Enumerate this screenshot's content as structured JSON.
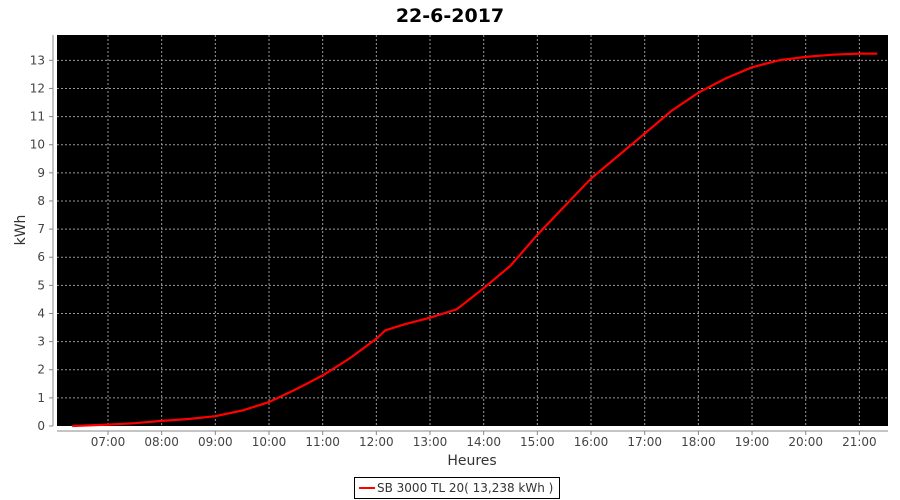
{
  "chart_data": {
    "type": "line",
    "title": "22-6-2017",
    "xlabel": "Heures",
    "ylabel": "kWh",
    "xlim": [
      "06:03",
      "21:32"
    ],
    "ylim": [
      0,
      13.9
    ],
    "x_ticks": [
      "07:00",
      "08:00",
      "09:00",
      "10:00",
      "11:00",
      "12:00",
      "13:00",
      "14:00",
      "15:00",
      "16:00",
      "17:00",
      "18:00",
      "19:00",
      "20:00",
      "21:00"
    ],
    "y_ticks": [
      0,
      1,
      2,
      3,
      4,
      5,
      6,
      7,
      8,
      9,
      10,
      11,
      12,
      13
    ],
    "grid": true,
    "background": "#000000",
    "legend_position": "bottom",
    "series": [
      {
        "name": "SB 3000 TL 20( 13,238 kWh )",
        "color": "#ff0000",
        "x": [
          "06:20",
          "07:00",
          "07:30",
          "08:00",
          "08:30",
          "09:00",
          "09:30",
          "10:00",
          "10:30",
          "11:00",
          "11:30",
          "12:00",
          "12:10",
          "12:30",
          "13:00",
          "13:30",
          "14:00",
          "14:30",
          "15:00",
          "15:30",
          "16:00",
          "16:30",
          "17:00",
          "17:30",
          "18:00",
          "18:30",
          "19:00",
          "19:30",
          "20:00",
          "20:30",
          "21:00",
          "21:20"
        ],
        "values": [
          0.0,
          0.05,
          0.1,
          0.18,
          0.25,
          0.35,
          0.55,
          0.85,
          1.3,
          1.8,
          2.4,
          3.1,
          3.4,
          3.6,
          3.85,
          4.15,
          4.9,
          5.7,
          6.8,
          7.8,
          8.8,
          9.6,
          10.4,
          11.2,
          11.85,
          12.35,
          12.75,
          13.0,
          13.12,
          13.2,
          13.24,
          13.238
        ]
      }
    ]
  }
}
